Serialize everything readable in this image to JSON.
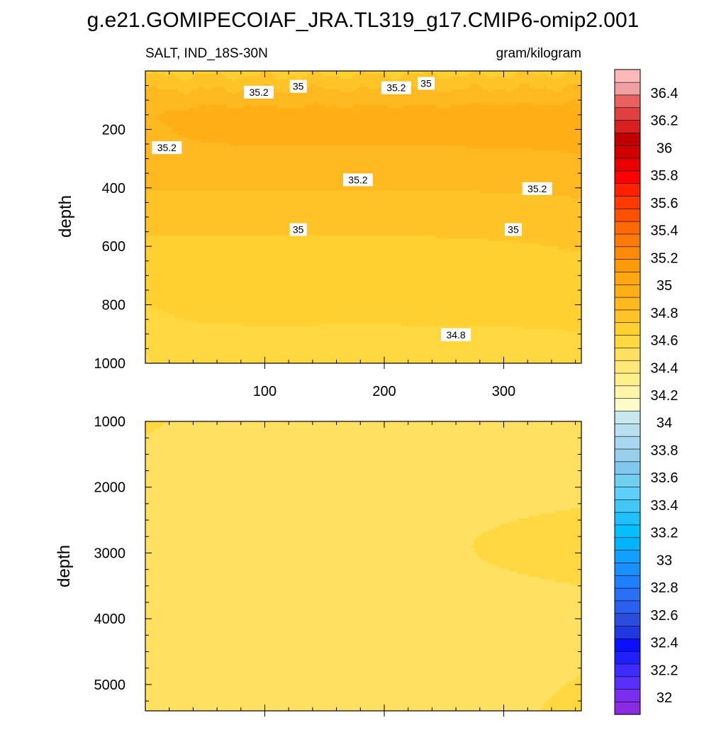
{
  "title": "g.e21.GOMIPECOIAF_JRA.TL319_g17.CMIP6-omip2.001",
  "colors": {
    "background": "#ffffff",
    "frame": "#000000",
    "contour_line": "#2b2b2b",
    "label_box": "#ffffff"
  },
  "chart_data": [
    {
      "type": "heatmap",
      "variant": "filled-contour",
      "subtitle_left": "SALT, IND_18S-30N",
      "subtitle_right": "gram/kilogram",
      "xlabel": "",
      "ylabel": "depth",
      "xlim": [
        0,
        365
      ],
      "ylim": [
        1000,
        0
      ],
      "y_inverted": true,
      "x_ticks": [
        100,
        200,
        300
      ],
      "y_ticks": [
        200,
        400,
        600,
        800,
        1000
      ],
      "grid": false,
      "contour_levels": [
        34.6,
        34.7,
        34.8,
        34.9,
        35.0,
        35.1,
        35.2,
        35.3
      ],
      "contour_labels": [
        {
          "text": "35.2",
          "x": 95,
          "y": 75
        },
        {
          "text": "35",
          "x": 128,
          "y": 55
        },
        {
          "text": "35.2",
          "x": 210,
          "y": 60
        },
        {
          "text": "35",
          "x": 235,
          "y": 45
        },
        {
          "text": "35.2",
          "x": 18,
          "y": 265
        },
        {
          "text": "35.2",
          "x": 178,
          "y": 375
        },
        {
          "text": "35.2",
          "x": 328,
          "y": 405
        },
        {
          "text": "35",
          "x": 128,
          "y": 545
        },
        {
          "text": "35",
          "x": 308,
          "y": 545
        },
        {
          "text": "34.8",
          "x": 260,
          "y": 905
        }
      ]
    },
    {
      "type": "heatmap",
      "variant": "filled-contour",
      "xlabel": "",
      "ylabel": "depth",
      "xlim": [
        0,
        365
      ],
      "ylim": [
        5400,
        1000
      ],
      "y_inverted": true,
      "x_ticks": [
        100,
        200,
        300
      ],
      "x_tick_labels_visible": false,
      "y_ticks": [
        1000,
        2000,
        3000,
        4000,
        5000
      ],
      "grid": false
    }
  ],
  "colorbar": {
    "orientation": "vertical",
    "levels": [
      32,
      32.1,
      32.2,
      32.3,
      32.4,
      32.5,
      32.6,
      32.7,
      32.8,
      32.9,
      33,
      33.1,
      33.2,
      33.3,
      33.4,
      33.5,
      33.6,
      33.7,
      33.8,
      33.9,
      34,
      34.1,
      34.2,
      34.3,
      34.4,
      34.5,
      34.6,
      34.7,
      34.8,
      34.9,
      35,
      35.1,
      35.2,
      35.3,
      35.4,
      35.5,
      35.6,
      35.7,
      35.8,
      35.9,
      36,
      36.1,
      36.2,
      36.3,
      36.4,
      36.5
    ],
    "tick_labels": [
      "32",
      "32.2",
      "32.4",
      "32.6",
      "32.8",
      "33",
      "33.2",
      "33.4",
      "33.6",
      "33.8",
      "34",
      "34.2",
      "34.4",
      "34.6",
      "34.8",
      "35",
      "35.2",
      "35.4",
      "35.6",
      "35.8",
      "36",
      "36.2",
      "36.4"
    ],
    "colors": [
      "#8a2be2",
      "#7a2ff0",
      "#5a30ff",
      "#3f2bff",
      "#2020ff",
      "#0a10ff",
      "#2038e0",
      "#2a4ddb",
      "#2a5ff0",
      "#2a6ff8",
      "#1e80ff",
      "#1890ff",
      "#10a0ff",
      "#00b4ff",
      "#00c0ff",
      "#20c0ff",
      "#40c8f8",
      "#5cd0f8",
      "#70d0f0",
      "#80c8f0",
      "#98d0ec",
      "#a8d8f0",
      "#b8e0f0",
      "#c8e8f0",
      "#fffccc",
      "#fff4a8",
      "#fff08c",
      "#ffe878",
      "#ffe060",
      "#ffd840",
      "#ffd030",
      "#ffc428",
      "#ffb820",
      "#ffae14",
      "#ffa610",
      "#ff9a08",
      "#ff8a08",
      "#ff7a08",
      "#ff6a00",
      "#ff5000",
      "#ff3a00",
      "#ff2000",
      "#ff0000",
      "#e80000",
      "#d00000",
      "#c00000",
      "#d82020",
      "#e04040",
      "#e86060",
      "#f0a0a0",
      "#ffb8b8"
    ]
  }
}
